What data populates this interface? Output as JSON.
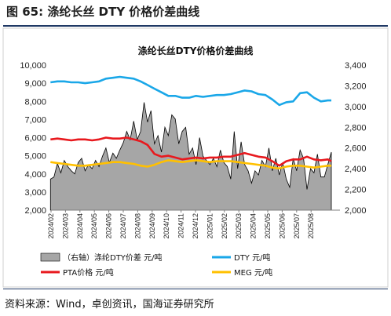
{
  "figure": {
    "title": "图 65:  涤纶长丝 DTY 价格价差曲线",
    "source": "资料来源：Wind，卓创资讯，国海证券研究所"
  },
  "chart_data": {
    "type": "line",
    "title": "涤纶长丝DTY价格价差曲线",
    "x_ticks": [
      "2024/02",
      "2024/03",
      "2024/04",
      "2024/05",
      "2024/06",
      "2024/07",
      "2024/08",
      "2024/09",
      "2024/10",
      "2024/11",
      "2024/12",
      "2025/01",
      "2025/02",
      "2025/03",
      "2025/04",
      "2025/05",
      "2025/06",
      "2025/07",
      "2025/08"
    ],
    "x_range": [
      "2024/02",
      "2025/09"
    ],
    "y_left": {
      "min": 2000,
      "max": 10000,
      "step": 1000,
      "ticks": [
        "2,000",
        "3,000",
        "4,000",
        "5,000",
        "6,000",
        "7,000",
        "8,000",
        "9,000",
        "10,000"
      ]
    },
    "y_right": {
      "min": 2000,
      "max": 3400,
      "step": 200,
      "ticks": [
        "2,000",
        "2,200",
        "2,400",
        "2,600",
        "2,800",
        "3,000",
        "3,200",
        "3,400"
      ]
    },
    "series": [
      {
        "name": "（右轴）涤纶DTY价差  元/吨",
        "legend_label": "（右轴）涤纶DTY价差  元/吨",
        "axis": "right",
        "style": "area",
        "color": "#a6a6a6",
        "x": [
          2024.08,
          2024.1,
          2024.12,
          2024.14,
          2024.16,
          2024.18,
          2024.2,
          2024.22,
          2024.24,
          2024.26,
          2024.28,
          2024.3,
          2024.32,
          2024.34,
          2024.36,
          2024.38,
          2024.4,
          2024.42,
          2024.44,
          2024.46,
          2024.48,
          2024.5,
          2024.52,
          2024.54,
          2024.56,
          2024.58,
          2024.6,
          2024.62,
          2024.64,
          2024.66,
          2024.68,
          2024.7,
          2024.72,
          2024.74,
          2024.76,
          2024.78,
          2024.8,
          2024.82,
          2024.84,
          2024.86,
          2024.88,
          2024.9,
          2024.92,
          2024.94,
          2024.96,
          2024.98,
          2025.0,
          2025.02,
          2025.04,
          2025.06,
          2025.08,
          2025.1,
          2025.12,
          2025.14,
          2025.16,
          2025.18,
          2025.2,
          2025.22,
          2025.24,
          2025.26,
          2025.28,
          2025.3,
          2025.32,
          2025.34,
          2025.36,
          2025.38,
          2025.4,
          2025.42,
          2025.44,
          2025.46,
          2025.48,
          2025.5,
          2025.52,
          2025.54,
          2025.56,
          2025.58,
          2025.6,
          2025.62,
          2025.64,
          2025.66,
          2025.68,
          2025.7
        ],
        "values": [
          2300,
          2320,
          2450,
          2360,
          2480,
          2420,
          2380,
          2350,
          2460,
          2500,
          2380,
          2440,
          2400,
          2480,
          2420,
          2520,
          2600,
          2460,
          2550,
          2500,
          2580,
          2650,
          2760,
          2680,
          2860,
          2680,
          2760,
          3040,
          2850,
          2960,
          2640,
          2720,
          2560,
          2800,
          2720,
          2920,
          2880,
          2640,
          2760,
          2800,
          2540,
          2600,
          2440,
          2700,
          2520,
          2480,
          2440,
          2500,
          2420,
          2580,
          2460,
          2420,
          2300,
          2760,
          2400,
          2660,
          2440,
          2380,
          2260,
          2380,
          2340,
          2480,
          2420,
          2600,
          2380,
          2500,
          2340,
          2460,
          2300,
          2220,
          2500,
          2380,
          2580,
          2500,
          2200,
          2400,
          2360,
          2540,
          2320,
          2320,
          2440,
          2560
        ]
      },
      {
        "name": "DTY  元/吨",
        "legend_label": "DTY  元/吨",
        "axis": "left",
        "style": "line",
        "color": "#1aa7e8",
        "x": [
          2024.08,
          2024.12,
          2024.16,
          2024.2,
          2024.24,
          2024.28,
          2024.32,
          2024.36,
          2024.4,
          2024.44,
          2024.48,
          2024.52,
          2024.56,
          2024.6,
          2024.64,
          2024.68,
          2024.72,
          2024.76,
          2024.8,
          2024.84,
          2024.88,
          2024.92,
          2024.96,
          2025.0,
          2025.04,
          2025.08,
          2025.12,
          2025.16,
          2025.2,
          2025.24,
          2025.28,
          2025.32,
          2025.36,
          2025.4,
          2025.44,
          2025.48,
          2025.52,
          2025.56,
          2025.6,
          2025.64,
          2025.68,
          2025.7
        ],
        "values": [
          9050,
          9100,
          9100,
          9050,
          9050,
          9000,
          9050,
          9100,
          9250,
          9300,
          9350,
          9300,
          9250,
          9100,
          8900,
          8700,
          8500,
          8300,
          8300,
          8200,
          8200,
          8300,
          8250,
          8300,
          8350,
          8350,
          8400,
          8500,
          8600,
          8550,
          8400,
          8350,
          8100,
          7800,
          7950,
          8000,
          8450,
          8500,
          8200,
          8000,
          8050,
          8050
        ]
      },
      {
        "name": "PTA价格  元/吨",
        "legend_label": "PTA价格  元/吨",
        "axis": "left",
        "style": "line",
        "color": "#e8191e",
        "x": [
          2024.08,
          2024.12,
          2024.16,
          2024.2,
          2024.24,
          2024.28,
          2024.32,
          2024.36,
          2024.4,
          2024.44,
          2024.48,
          2024.52,
          2024.56,
          2024.6,
          2024.64,
          2024.68,
          2024.72,
          2024.76,
          2024.8,
          2024.84,
          2024.88,
          2024.92,
          2024.96,
          2025.0,
          2025.04,
          2025.08,
          2025.12,
          2025.16,
          2025.2,
          2025.24,
          2025.28,
          2025.32,
          2025.36,
          2025.4,
          2025.44,
          2025.48,
          2025.52,
          2025.56,
          2025.6,
          2025.64,
          2025.68,
          2025.7
        ],
        "values": [
          5900,
          5950,
          5900,
          5850,
          5900,
          5900,
          5850,
          5900,
          6000,
          5950,
          5950,
          6000,
          5900,
          5800,
          5600,
          5100,
          4950,
          5000,
          4900,
          4800,
          4850,
          4900,
          4850,
          4900,
          4900,
          4950,
          4950,
          5050,
          5150,
          5050,
          4950,
          4900,
          4700,
          4450,
          4700,
          4800,
          4800,
          4950,
          4800,
          4750,
          4800,
          4700
        ]
      },
      {
        "name": "MEG  元/吨",
        "legend_label": "MEG  元/吨",
        "axis": "left",
        "style": "line",
        "color": "#ffc000",
        "x": [
          2024.08,
          2024.12,
          2024.16,
          2024.2,
          2024.24,
          2024.28,
          2024.32,
          2024.36,
          2024.4,
          2024.44,
          2024.48,
          2024.52,
          2024.56,
          2024.6,
          2024.64,
          2024.68,
          2024.72,
          2024.76,
          2024.8,
          2024.84,
          2024.88,
          2024.92,
          2024.96,
          2025.0,
          2025.04,
          2025.08,
          2025.12,
          2025.16,
          2025.2,
          2025.24,
          2025.28,
          2025.32,
          2025.36,
          2025.4,
          2025.44,
          2025.48,
          2025.52,
          2025.56,
          2025.6,
          2025.64,
          2025.68,
          2025.7
        ],
        "values": [
          4650,
          4600,
          4550,
          4500,
          4450,
          4450,
          4500,
          4550,
          4600,
          4650,
          4650,
          4600,
          4550,
          4450,
          4400,
          4500,
          4650,
          4750,
          4700,
          4650,
          4700,
          4750,
          4700,
          4650,
          4700,
          4700,
          4700,
          4650,
          4600,
          4550,
          4500,
          4450,
          4350,
          4300,
          4400,
          4450,
          4450,
          4400,
          4350,
          4400,
          4450,
          4450
        ]
      }
    ],
    "legend_position": "bottom",
    "grid": false
  }
}
